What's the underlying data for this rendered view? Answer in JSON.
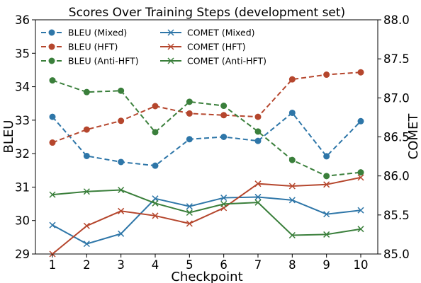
{
  "chart_data": {
    "type": "line",
    "title": "Scores Over Training Steps (development set)",
    "xlabel": "Checkpoint",
    "ylabel_left": "BLEU",
    "ylabel_right": "COMET",
    "x": [
      1,
      2,
      3,
      4,
      5,
      6,
      7,
      8,
      9,
      10
    ],
    "x_ticks": [
      "1",
      "2",
      "3",
      "4",
      "5",
      "6",
      "7",
      "8",
      "9",
      "10"
    ],
    "ylim_left": [
      29,
      36
    ],
    "yticks_left": [
      "29",
      "30",
      "31",
      "32",
      "33",
      "34",
      "35",
      "36"
    ],
    "ylim_right": [
      85.0,
      88.0
    ],
    "yticks_right": [
      "85.0",
      "85.5",
      "86.0",
      "86.5",
      "87.0",
      "87.5",
      "88.0"
    ],
    "grid": false,
    "legend_position": "upper-left",
    "series": [
      {
        "name": "BLEU (Mixed)",
        "axis": "left",
        "style": "dashed",
        "marker": "circle",
        "color": "#2e76a8",
        "values": [
          33.1,
          31.93,
          31.75,
          31.64,
          32.43,
          32.5,
          32.38,
          33.22,
          31.92,
          32.97
        ]
      },
      {
        "name": "BLEU (HFT)",
        "axis": "left",
        "style": "dashed",
        "marker": "circle",
        "color": "#b5462d",
        "values": [
          32.33,
          32.72,
          32.98,
          33.42,
          33.2,
          33.15,
          33.1,
          34.22,
          34.36,
          34.43
        ]
      },
      {
        "name": "BLEU (Anti-HFT)",
        "axis": "left",
        "style": "dashed",
        "marker": "circle",
        "color": "#3a7f3b",
        "values": [
          34.19,
          33.84,
          33.88,
          32.64,
          33.55,
          33.43,
          32.66,
          31.81,
          31.33,
          31.44
        ]
      },
      {
        "name": "COMET (Mixed)",
        "axis": "right",
        "style": "solid",
        "marker": "x",
        "color": "#2e76a8",
        "values": [
          85.37,
          85.13,
          85.26,
          85.71,
          85.61,
          85.72,
          85.73,
          85.69,
          85.51,
          85.56
        ]
      },
      {
        "name": "COMET (HFT)",
        "axis": "right",
        "style": "solid",
        "marker": "x",
        "color": "#b5462d",
        "values": [
          85.0,
          85.36,
          85.55,
          85.49,
          85.39,
          85.59,
          85.9,
          85.87,
          85.89,
          85.98
        ]
      },
      {
        "name": "COMET (Anti-HFT)",
        "axis": "right",
        "style": "solid",
        "marker": "x",
        "color": "#3a7f3b",
        "values": [
          85.76,
          85.8,
          85.82,
          85.65,
          85.53,
          85.64,
          85.66,
          85.24,
          85.25,
          85.32
        ]
      }
    ]
  }
}
